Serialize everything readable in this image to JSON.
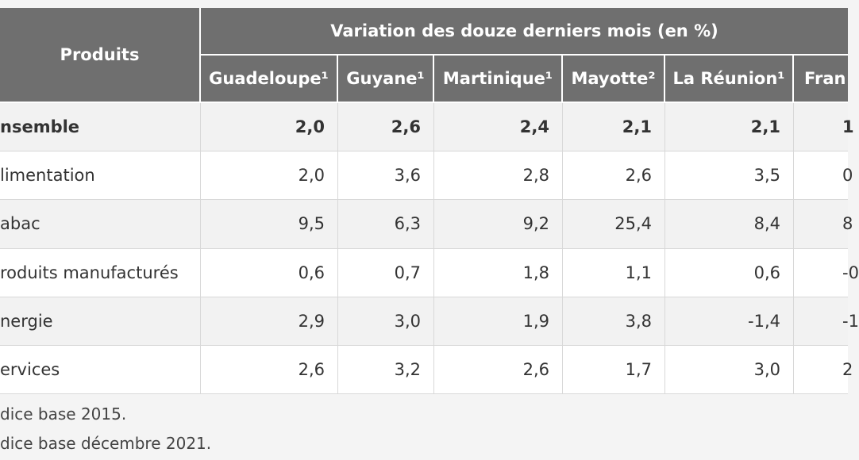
{
  "table": {
    "header": {
      "first": "Produits",
      "group": "Variation des douze derniers mois (en %)",
      "columns": [
        "Guadeloupe¹",
        "Guyane¹",
        "Martinique¹",
        "Mayotte²",
        "La Réunion¹",
        "Fran"
      ]
    },
    "rows": [
      {
        "label": "nsemble",
        "values": [
          "2,0",
          "2,6",
          "2,4",
          "2,1",
          "2,1",
          "1"
        ]
      },
      {
        "label": "limentation",
        "values": [
          "2,0",
          "3,6",
          "2,8",
          "2,6",
          "3,5",
          "0"
        ]
      },
      {
        "label": "abac",
        "values": [
          "9,5",
          "6,3",
          "9,2",
          "25,4",
          "8,4",
          "8"
        ]
      },
      {
        "label": "roduits manufacturés",
        "values": [
          "0,6",
          "0,7",
          "1,8",
          "1,1",
          "0,6",
          "-0"
        ]
      },
      {
        "label": "nergie",
        "values": [
          "2,9",
          "3,0",
          "1,9",
          "3,8",
          "-1,4",
          "-1"
        ]
      },
      {
        "label": "ervices",
        "values": [
          "2,6",
          "3,2",
          "2,6",
          "1,7",
          "3,0",
          "2"
        ]
      }
    ],
    "footnotes": [
      "dice base 2015.",
      "dice base décembre 2021."
    ]
  }
}
